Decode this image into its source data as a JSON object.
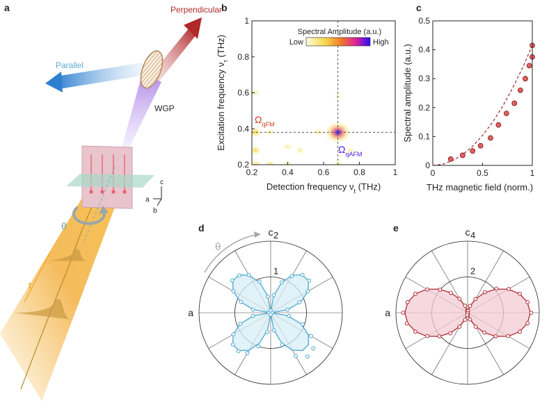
{
  "panel_labels": [
    "a",
    "b",
    "c",
    "d",
    "e"
  ],
  "diagram": {
    "perpendicular": "Perpendicular",
    "parallel": "Parallel",
    "wgp": "WGP",
    "theta": "θ",
    "tau": "τ",
    "axis_c": "c",
    "axis_a": "a",
    "axis_b": "b"
  },
  "chart_data": [
    {
      "type": "heatmap",
      "xlabel": [
        "Detection frequency ν",
        "t",
        " (THz)"
      ],
      "ylabel": [
        "Excitation frequency ν",
        "τ",
        " (THz)"
      ],
      "colorbar": {
        "title": "Spectral Amplitude (a.u.)",
        "low": "Low",
        "high": "High"
      },
      "annotations": [
        [
          "Ω",
          "qFM"
        ],
        [
          "Ω",
          "qAFM"
        ]
      ],
      "x": [
        0.68,
        0.22,
        0.22,
        0.22,
        0.3,
        0.4,
        0.47,
        0.22,
        0.3,
        0.57,
        0.68,
        0.75,
        0.68,
        0.4
      ],
      "y": [
        0.38,
        0.38,
        0.28,
        0.2,
        0.2,
        0.2,
        0.28,
        0.6,
        0.38,
        0.38,
        0.2,
        0.28,
        0.58,
        0.3
      ],
      "values": [
        1,
        0.35,
        0.3,
        0.3,
        0.25,
        0.2,
        0.15,
        0.15,
        0.15,
        0.15,
        0.2,
        0.15,
        0.1,
        0.15
      ],
      "crosshair": {
        "x": 0.68,
        "y": 0.38
      },
      "xlim": [
        0.2,
        1
      ],
      "ylim": [
        0.2,
        1
      ],
      "xticks": [
        0.2,
        0.4,
        0.6,
        0.8,
        1
      ],
      "yticks": [
        0.2,
        0.4,
        0.6,
        0.8,
        1
      ]
    },
    {
      "type": "scatter",
      "xlabel": "THz magnetic field (norm.)",
      "ylabel": "Spectral amplitude (a.u.)",
      "x": [
        0.18,
        0.3,
        0.4,
        0.48,
        0.58,
        0.66,
        0.74,
        0.82,
        0.88,
        0.93,
        0.97,
        1.0,
        1.0
      ],
      "values": [
        0.022,
        0.035,
        0.05,
        0.068,
        0.095,
        0.14,
        0.18,
        0.215,
        0.26,
        0.3,
        0.345,
        0.375,
        0.415
      ],
      "color": "#e06060",
      "fit": {
        "x": [
          0,
          0.1,
          0.2,
          0.3,
          0.4,
          0.5,
          0.6,
          0.7,
          0.8,
          0.9,
          1
        ],
        "values": [
          0,
          0.004,
          0.017,
          0.037,
          0.066,
          0.104,
          0.149,
          0.203,
          0.266,
          0.336,
          0.415
        ],
        "color": "#a0222a"
      },
      "xlim": [
        0,
        1
      ],
      "ylim": [
        0,
        0.5
      ],
      "xticks": [
        0,
        0.5,
        1
      ],
      "yticks": [
        0,
        0.1,
        0.2,
        0.3,
        0.4,
        0.5
      ]
    },
    {
      "type": "polar",
      "angle_labels": [
        "c",
        "a"
      ],
      "annotation": "θ",
      "angles": [
        0,
        10,
        20,
        30,
        40,
        50,
        60,
        70,
        80,
        90,
        100,
        110,
        120,
        130,
        140,
        150,
        160,
        170,
        180,
        190,
        200,
        210,
        220,
        230,
        240,
        250,
        260,
        270,
        280,
        290,
        300,
        310,
        320,
        330,
        340,
        350
      ],
      "values": [
        0.05,
        0.5,
        0.88,
        1.2,
        1.4,
        1.36,
        1.22,
        0.92,
        0.46,
        0.06,
        0.5,
        0.9,
        1.18,
        1.38,
        1.4,
        1.2,
        0.85,
        0.48,
        0.04,
        0.52,
        0.95,
        1.3,
        1.55,
        1.6,
        1.4,
        0.95,
        0.5,
        0.05,
        0.55,
        1.0,
        1.3,
        1.4,
        1.38,
        1.2,
        0.9,
        0.5
      ],
      "fit": [
        0,
        0.48,
        0.9,
        1.21,
        1.38,
        1.38,
        1.21,
        0.9,
        0.48,
        0,
        0.48,
        0.9,
        1.21,
        1.38,
        1.38,
        1.21,
        0.9,
        0.48,
        0,
        0.48,
        0.9,
        1.21,
        1.38,
        1.38,
        1.21,
        0.9,
        0.48,
        0,
        0.48,
        0.9,
        1.21,
        1.38,
        1.38,
        1.21,
        0.9,
        0.48
      ],
      "color": "#4aa8d0",
      "fill": "#d8eef7",
      "rlim": [
        0,
        2
      ],
      "rticks": [
        1,
        2
      ]
    },
    {
      "type": "polar",
      "angle_labels": [
        "c",
        "a"
      ],
      "angles": [
        0,
        10,
        20,
        30,
        40,
        50,
        60,
        70,
        80,
        90,
        100,
        110,
        120,
        130,
        140,
        150,
        160,
        170,
        180,
        190,
        200,
        210,
        220,
        230,
        240,
        250,
        260,
        270,
        280,
        290,
        300,
        310,
        320,
        330,
        340,
        350
      ],
      "values": [
        3.6,
        3.4,
        3.1,
        2.6,
        2.0,
        1.45,
        0.9,
        0.42,
        0.12,
        0.02,
        0.1,
        0.4,
        0.88,
        1.5,
        2.1,
        2.65,
        3.1,
        3.4,
        3.55,
        3.4,
        3.1,
        2.6,
        2.05,
        1.45,
        0.9,
        0.4,
        0.1,
        0.02,
        0.12,
        0.42,
        0.9,
        1.5,
        2.05,
        2.6,
        3.1,
        3.45
      ],
      "fit": [
        3.5,
        3.39,
        3.09,
        2.63,
        2.05,
        1.45,
        0.88,
        0.41,
        0.1,
        0,
        0.1,
        0.41,
        0.88,
        1.45,
        2.05,
        2.63,
        3.09,
        3.39,
        3.5,
        3.39,
        3.09,
        2.63,
        2.05,
        1.45,
        0.88,
        0.41,
        0.1,
        0,
        0.1,
        0.41,
        0.88,
        1.45,
        2.05,
        2.63,
        3.09,
        3.39
      ],
      "color": "#b02a30",
      "fill": "#f3ccd4",
      "rlim": [
        0,
        4
      ],
      "rticks": [
        2,
        4
      ]
    }
  ]
}
